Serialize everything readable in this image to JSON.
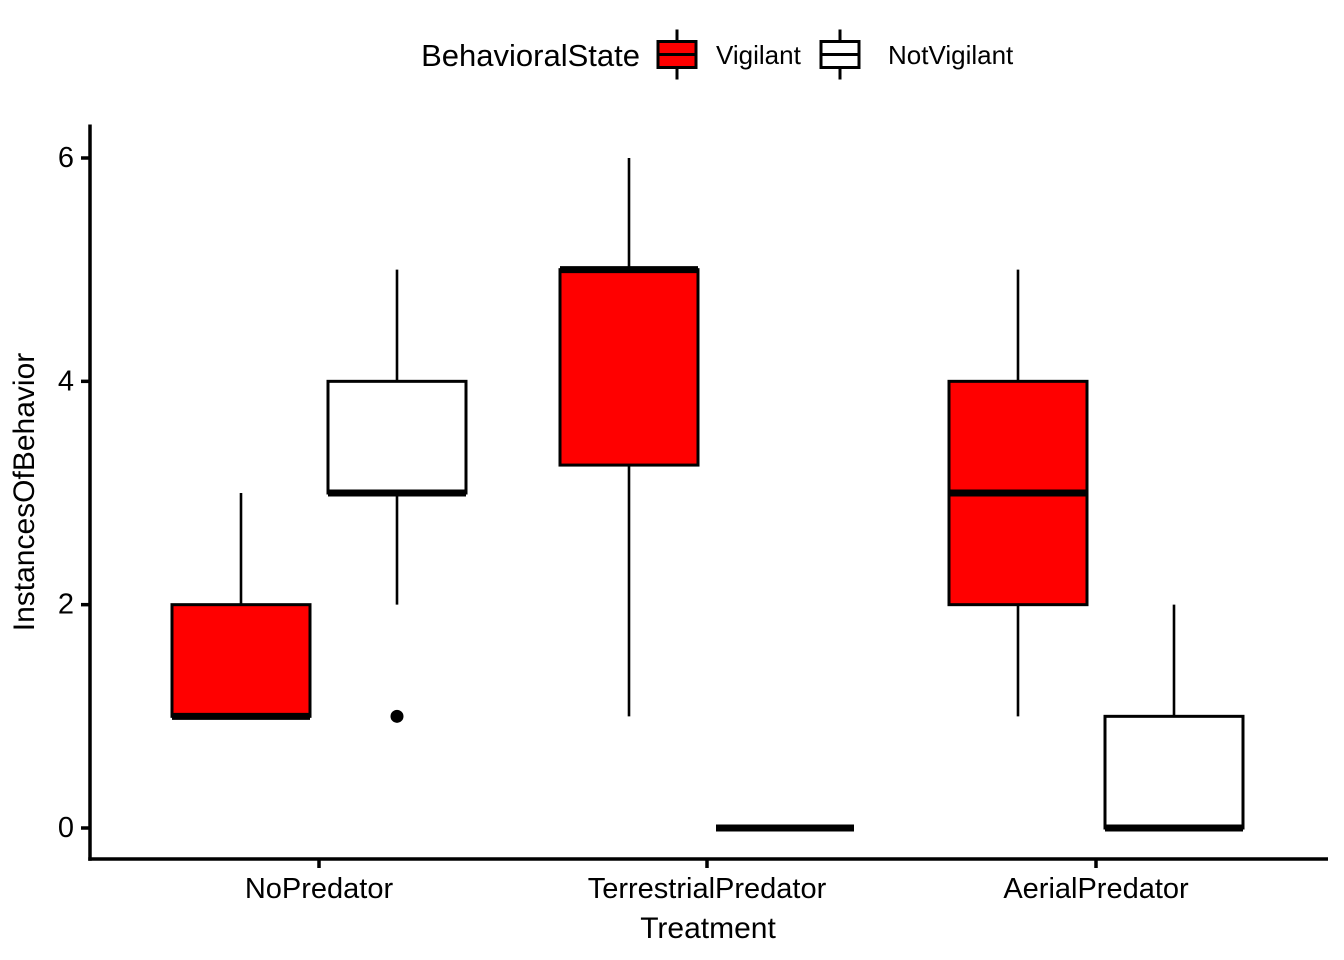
{
  "legend": {
    "title": "BehavioralState",
    "items": [
      {
        "label": "Vigilant",
        "fill": "#FF0000"
      },
      {
        "label": "NotVigilant",
        "fill": "#FFFFFF"
      }
    ]
  },
  "chart_data": {
    "type": "boxplot",
    "title": "",
    "xlabel": "Treatment",
    "ylabel": "InstancesOfBehavior",
    "categories": [
      "NoPredator",
      "TerrestrialPredator",
      "AerialPredator"
    ],
    "y_ticks": [
      "0",
      "2",
      "4",
      "6"
    ],
    "y_tick_values": [
      0,
      2,
      4,
      6
    ],
    "ylim": [
      -0.3,
      6.3
    ],
    "grid": false,
    "legend_position": "top-center",
    "colors": {
      "stroke": "#000000",
      "background": "#FFFFFF",
      "vigilant": "#FF0000",
      "notvigilant": "#FFFFFF"
    },
    "series": [
      {
        "name": "Vigilant",
        "fill": "#FF0000",
        "boxes": [
          {
            "category": "NoPredator",
            "whisker_low": 1,
            "q1": 1,
            "median": 1,
            "q3": 2,
            "whisker_high": 3,
            "outliers": []
          },
          {
            "category": "TerrestrialPredator",
            "whisker_low": 1,
            "q1": 3.25,
            "median": 5,
            "q3": 5,
            "whisker_high": 6,
            "outliers": []
          },
          {
            "category": "AerialPredator",
            "whisker_low": 1,
            "q1": 2,
            "median": 3,
            "q3": 4,
            "whisker_high": 5,
            "outliers": []
          }
        ]
      },
      {
        "name": "NotVigilant",
        "fill": "#FFFFFF",
        "boxes": [
          {
            "category": "NoPredator",
            "whisker_low": 2,
            "q1": 3,
            "median": 3,
            "q3": 4,
            "whisker_high": 5,
            "outliers": [
              1
            ]
          },
          {
            "category": "TerrestrialPredator",
            "whisker_low": 0,
            "q1": 0,
            "median": 0,
            "q3": 0,
            "whisker_high": 0,
            "outliers": []
          },
          {
            "category": "AerialPredator",
            "whisker_low": 0,
            "q1": 0,
            "median": 0,
            "q3": 1,
            "whisker_high": 2,
            "outliers": []
          }
        ]
      }
    ]
  }
}
